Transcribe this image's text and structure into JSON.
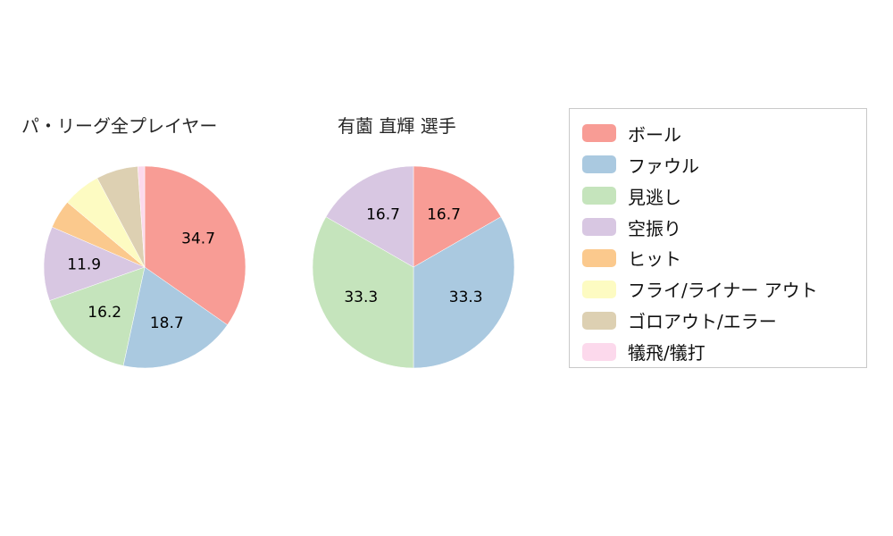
{
  "chart_data": [
    {
      "type": "pie",
      "title": "パ・リーグ全プレイヤー",
      "labels": [
        "ボール",
        "ファウル",
        "見逃し",
        "空振り",
        "ヒット",
        "フライ/ライナー アウト",
        "ゴロアウト/エラー",
        "犠飛/犠打"
      ],
      "values": [
        34.7,
        18.7,
        16.2,
        11.9,
        4.6,
        6.1,
        6.7,
        1.1
      ],
      "colors": [
        "#f89c95",
        "#aac9e0",
        "#c5e4bc",
        "#d8c7e2",
        "#fbc98d",
        "#fdfbc2",
        "#ddd0b2",
        "#fcd9ec"
      ],
      "start_angle_deg": 0,
      "direction": "clockwise",
      "label_threshold": 10,
      "label_radius_ratio": 0.6
    },
    {
      "type": "pie",
      "title": "有薗 直輝 選手",
      "labels": [
        "ボール",
        "ファウル",
        "見逃し",
        "空振り"
      ],
      "values": [
        16.7,
        33.3,
        33.3,
        16.7
      ],
      "colors": [
        "#f89c95",
        "#aac9e0",
        "#c5e4bc",
        "#d8c7e2"
      ],
      "start_angle_deg": 0,
      "direction": "clockwise",
      "label_threshold": 10,
      "label_radius_ratio": 0.6
    }
  ],
  "legend": {
    "position": "right",
    "items": [
      {
        "label": "ボール",
        "color": "#f89c95"
      },
      {
        "label": "ファウル",
        "color": "#aac9e0"
      },
      {
        "label": "見逃し",
        "color": "#c5e4bc"
      },
      {
        "label": "空振り",
        "color": "#d8c7e2"
      },
      {
        "label": "ヒット",
        "color": "#fbc98d"
      },
      {
        "label": "フライ/ライナー アウト",
        "color": "#fdfbc2"
      },
      {
        "label": "ゴロアウト/エラー",
        "color": "#ddd0b2"
      },
      {
        "label": "犠飛/犠打",
        "color": "#fcd9ec"
      }
    ]
  },
  "titles": {
    "left": "パ・リーグ全プレイヤー",
    "right": "有薗 直輝 選手"
  }
}
